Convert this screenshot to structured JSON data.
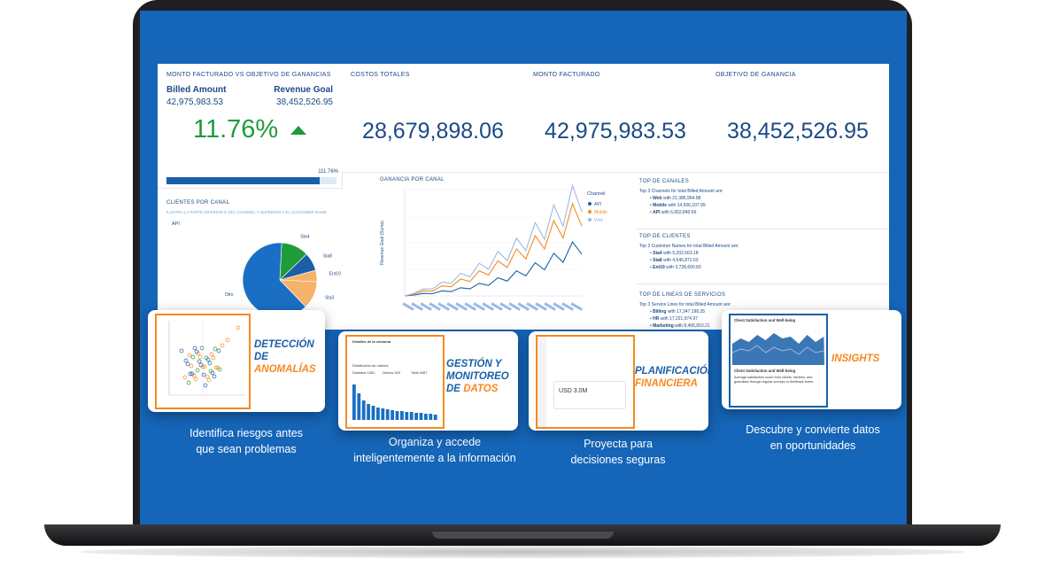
{
  "kpis": {
    "monto_vs_objetivo": {
      "title": "MONTO FACTURADO VS OBJETIVO DE GANANCIAS",
      "billed_label": "Billed Amount",
      "billed_value": "42,975,983.53",
      "goal_label": "Revenue Goal",
      "goal_value": "38,452,526.95",
      "percent": "11.76%",
      "bar_label": "111.76%",
      "bar_fill_fraction": 0.9
    },
    "costos_totales": {
      "title": "COSTOS TOTALES",
      "value": "28,679,898.06"
    },
    "monto_facturado": {
      "title": "MONTO FACTURADO",
      "value": "42,975,983.53"
    },
    "objetivo_ganancia": {
      "title": "OBJETIVO DE GANANCIA",
      "value": "38,452,526.95"
    }
  },
  "clientes_por_canal": {
    "title": "CLIENTES POR CANAL",
    "note": "ILUSTRA LA PARTE INFERIOR E DEL CHANNEL Y SUPERIOR A EL CUSTOMER NAME",
    "filter": "API",
    "chart_data": {
      "type": "pie",
      "categories": [
        "Sta4",
        "Sta8",
        "Ent19",
        "Sta3",
        "Otro"
      ],
      "values": [
        12,
        8,
        5,
        12,
        63
      ],
      "colors": [
        "#1f9b3a",
        "#1a5fa8",
        "#f7b26a",
        "#f7b26a",
        "#1a6fc4"
      ]
    }
  },
  "ganancia_por_canal": {
    "title": "GANANCIA POR CANAL",
    "ylabel": "Revenue Goal (Suma)",
    "legend_title": "Channel",
    "chart_data": {
      "type": "line",
      "series": [
        {
          "name": "API",
          "color": "#1a5fa8",
          "values": [
            0,
            0.2,
            0.4,
            0.5,
            0.8,
            1,
            1.3,
            1.6,
            2,
            2.4,
            2.9,
            3.4,
            4,
            4.6,
            5.3,
            6,
            6.8,
            7.7,
            8.6,
            9.6
          ]
        },
        {
          "name": "Mobile",
          "color": "#f58a20",
          "values": [
            0,
            0.4,
            0.8,
            1.1,
            1.6,
            2.1,
            2.7,
            3.3,
            4,
            4.8,
            5.6,
            6.5,
            7.5,
            8.5,
            9.6,
            10.8,
            12,
            13.3,
            14.7,
            16
          ]
        },
        {
          "name": "Web",
          "color": "#9db9e0",
          "values": [
            0,
            0.6,
            1.1,
            1.6,
            2.2,
            2.9,
            3.6,
            4.4,
            5.2,
            6.1,
            7.1,
            8.1,
            9.2,
            10.4,
            11.7,
            13,
            14.5,
            16,
            17.6,
            19.3
          ]
        }
      ]
    }
  },
  "top_canales": {
    "title": "TOP DE CANALES",
    "intro": "Top 3 Channels for total Billed Amount are:",
    "items": [
      {
        "name": "Web",
        "value": "with 21,386,954.98"
      },
      {
        "name": "Mobile",
        "value": "with 14,936,107.99"
      },
      {
        "name": "API",
        "value": "with 6,652,840.56"
      }
    ]
  },
  "top_clientes": {
    "title": "TOP DE CLIENTES",
    "intro": "Top 3 Customer Names for total Billed Amount are:",
    "items": [
      {
        "name": "Sta4",
        "value": "with 5,202,563.18"
      },
      {
        "name": "Sta8",
        "value": "with 4,546,872.53"
      },
      {
        "name": "Ent19",
        "value": "with 3,728,600.83"
      }
    ]
  },
  "top_servicios": {
    "title": "TOP DE LINEAS DE SERVICIOS",
    "intro": "Top 3 Service Lines for total Billed Amount are:",
    "items": [
      {
        "name": "Billing",
        "value": "with 17,347,198.35"
      },
      {
        "name": "HR",
        "value": "with 17,221,974.97"
      },
      {
        "name": "Marketing",
        "value": "with 8,406,810.21"
      }
    ]
  },
  "features": [
    {
      "title_lines": [
        "DETECCIÓN",
        "DE"
      ],
      "title_accent": "ANOMALÍAS",
      "caption_lines": [
        "Identifica riesgos antes",
        "que sean problemas"
      ]
    },
    {
      "title_lines": [
        "GESTIÓN Y",
        "MONITOREO",
        "DE"
      ],
      "title_accent": "DATOS",
      "caption_lines": [
        "Organiza y accede",
        "inteligentemente a la información"
      ]
    },
    {
      "title_lines": [
        "PLANIFICACIÓN"
      ],
      "title_accent": "FINANCIERA",
      "caption_lines": [
        "Proyecta para",
        "decisiones seguras"
      ]
    },
    {
      "title_lines": [],
      "title_accent": "INSIGHTS",
      "caption_lines": [
        "Descubre y convierte datos",
        "en oportunidades"
      ]
    }
  ],
  "thumbs": {
    "gestion_header": "Detalles de la columna",
    "gestion_dist": "Distribución de valores",
    "gestion_stats": [
      "Distintos 1351",
      "Únicos 923",
      "Total 4987"
    ],
    "plan_value": "USD 3.0M",
    "insight_title": "Client Satisfaction and Well-being",
    "insight_text": "Average satisfaction score from clients, families, and guardians through regular surveys or feedback forms."
  }
}
